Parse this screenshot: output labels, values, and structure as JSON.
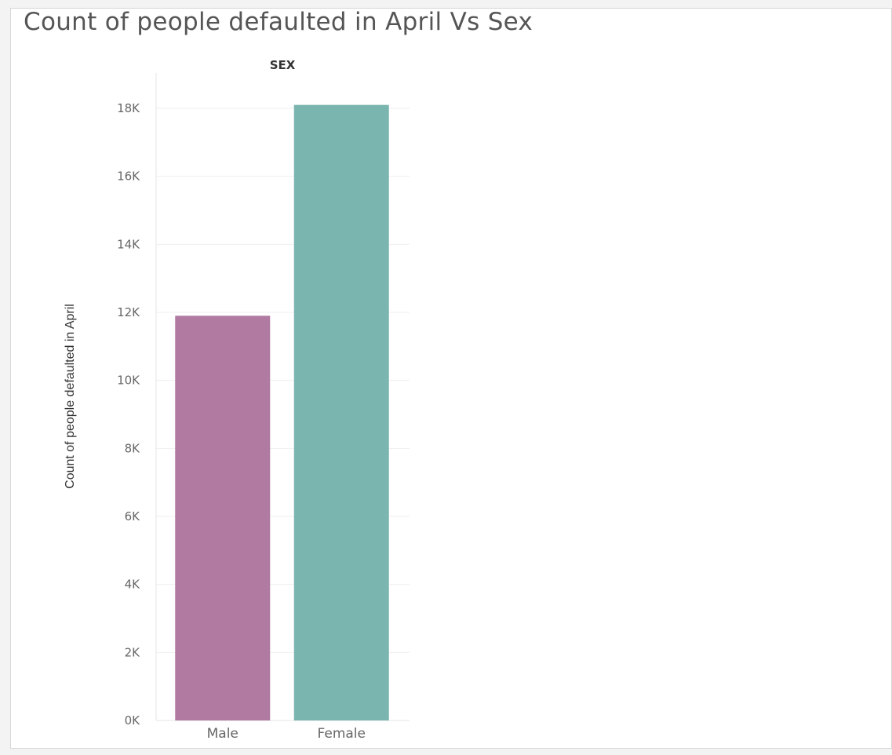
{
  "chart_data": {
    "type": "bar",
    "title": "Count of people defaulted in April Vs Sex",
    "column_header": "SEX",
    "ylabel": "Count of people defaulted in April",
    "xlabel": "",
    "categories": [
      "Male",
      "Female"
    ],
    "values": [
      11900,
      18100
    ],
    "colors": [
      "#b07aa1",
      "#7ab5b0"
    ],
    "ylim": [
      0,
      18000
    ],
    "yticks": [
      {
        "value": 0,
        "label": "0K"
      },
      {
        "value": 2000,
        "label": "2K"
      },
      {
        "value": 4000,
        "label": "4K"
      },
      {
        "value": 6000,
        "label": "6K"
      },
      {
        "value": 8000,
        "label": "8K"
      },
      {
        "value": 10000,
        "label": "10K"
      },
      {
        "value": 12000,
        "label": "12K"
      },
      {
        "value": 14000,
        "label": "14K"
      },
      {
        "value": 16000,
        "label": "16K"
      },
      {
        "value": 18000,
        "label": "18K"
      }
    ],
    "grid": true
  }
}
